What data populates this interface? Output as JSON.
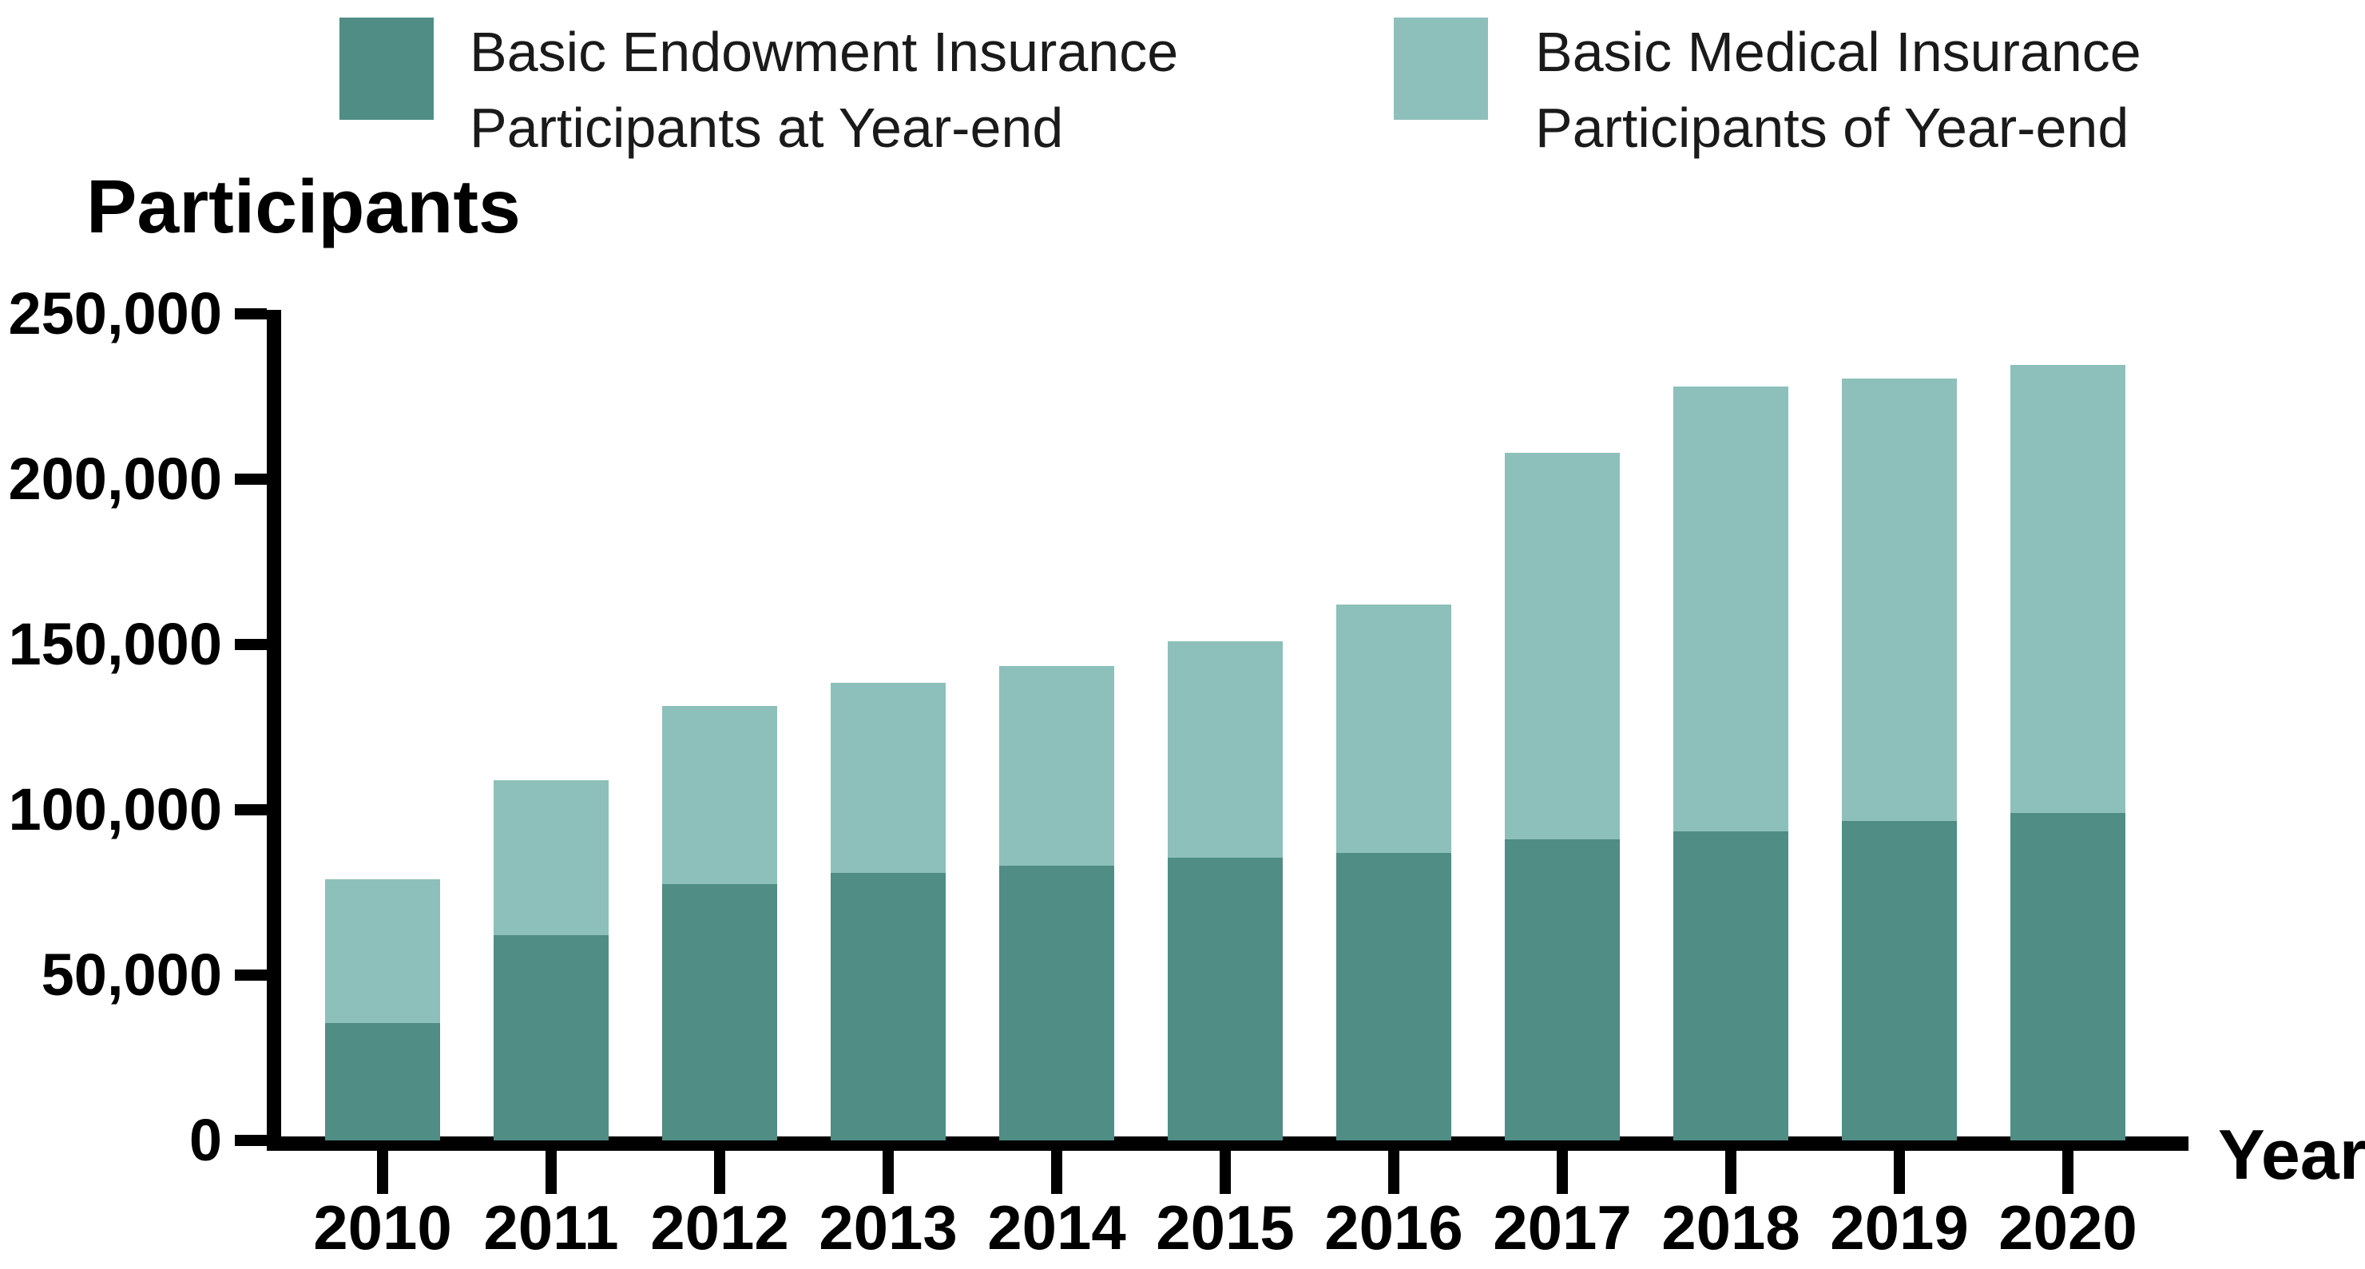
{
  "chart_data": {
    "type": "bar",
    "subtype": "stacked-overlap",
    "values_estimated_from_pixels": true,
    "ylabel": "Participants",
    "xlabel": "Year",
    "categories": [
      "2010",
      "2011",
      "2012",
      "2013",
      "2014",
      "2015",
      "2016",
      "2017",
      "2018",
      "2019",
      "2020"
    ],
    "series": [
      {
        "name": "Basic Endowment Insurance Participants at Year-end",
        "color": "#4F8D85",
        "values": [
          35500,
          62000,
          77500,
          81000,
          83000,
          85500,
          87000,
          91000,
          93500,
          96500,
          99000
        ]
      },
      {
        "name": "Basic Medical Insurance Participants of Year-end",
        "color": "#8DC0BA",
        "role": "bar top / total height drawn behind the endowment series",
        "values": [
          79000,
          109000,
          131500,
          138500,
          143500,
          151000,
          162000,
          208000,
          228000,
          230500,
          234500
        ]
      }
    ],
    "y_ticks": [
      "0",
      "50,000",
      "100,000",
      "150,000",
      "200,000",
      "250,000"
    ],
    "y_tick_values": [
      0,
      50000,
      100000,
      150000,
      200000,
      250000
    ],
    "ylim": [
      0,
      250000
    ],
    "grid": false,
    "legend_position": "top",
    "axis_color": "#000000",
    "background_color": "#FFFFFF"
  },
  "legend": {
    "items": [
      {
        "line1": "Basic Endowment Insurance",
        "line2": "Participants at Year-end",
        "color": "#4F8D85"
      },
      {
        "line1": "Basic Medical Insurance",
        "line2": "Participants of Year-end",
        "color": "#8DC0BA"
      }
    ]
  }
}
